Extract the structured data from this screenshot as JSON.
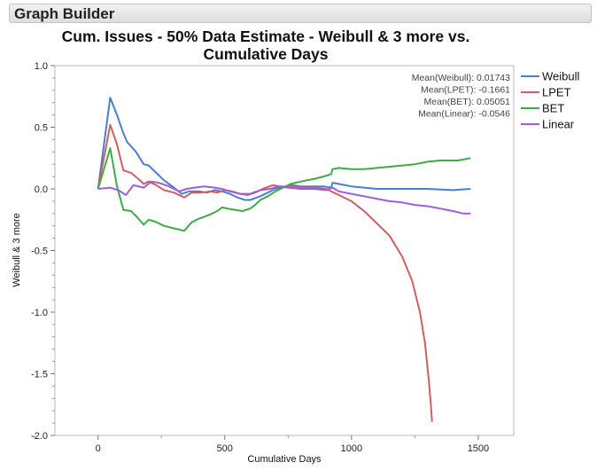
{
  "app": {
    "title": "Graph Builder"
  },
  "chart_data": {
    "type": "line",
    "title_line1": "Cum. Issues - 50% Data Estimate - Weibull & 3 more vs.",
    "title_line2": "Cumulative Days",
    "xlabel": "Cumulative Days",
    "ylabel": "Weibull & 3 more",
    "xlim": [
      -170,
      1640
    ],
    "ylim": [
      -2.0,
      1.0
    ],
    "x_ticks": [
      0,
      500,
      1000,
      1500
    ],
    "y_ticks": [
      1.0,
      0.5,
      0.0,
      -0.5,
      -1.0,
      -1.5,
      -2.0
    ],
    "y_tick_labels": [
      "1.0",
      "0.5",
      "0.0",
      "-0.5",
      "-1.0",
      "-1.5",
      "-2.0"
    ],
    "legend_position": "right",
    "annotations": [
      "Mean(Weibull): 0.01743",
      "Mean(LPET): -0.1661",
      "Mean(BET): 0.05051",
      "Mean(Linear): -0.0546"
    ],
    "series": [
      {
        "name": "Weibull",
        "color": "#4a7fcb",
        "points": [
          [
            0,
            0
          ],
          [
            48,
            0.74
          ],
          [
            75,
            0.6
          ],
          [
            100,
            0.45
          ],
          [
            115,
            0.38
          ],
          [
            150,
            0.3
          ],
          [
            180,
            0.2
          ],
          [
            200,
            0.19
          ],
          [
            225,
            0.14
          ],
          [
            260,
            0.07
          ],
          [
            300,
            0.01
          ],
          [
            330,
            -0.04
          ],
          [
            360,
            -0.02
          ],
          [
            400,
            -0.02
          ],
          [
            430,
            -0.03
          ],
          [
            460,
            -0.01
          ],
          [
            490,
            -0.02
          ],
          [
            520,
            -0.04
          ],
          [
            550,
            -0.07
          ],
          [
            580,
            -0.09
          ],
          [
            600,
            -0.09
          ],
          [
            640,
            -0.06
          ],
          [
            670,
            -0.03
          ],
          [
            700,
            0.0
          ],
          [
            720,
            0.01
          ],
          [
            740,
            0.02
          ],
          [
            770,
            0.03
          ],
          [
            800,
            0.02
          ],
          [
            830,
            0.02
          ],
          [
            860,
            0.02
          ],
          [
            890,
            0.02
          ],
          [
            920,
            0.01
          ],
          [
            925,
            0.05
          ],
          [
            950,
            0.04
          ],
          [
            1000,
            0.02
          ],
          [
            1050,
            0.01
          ],
          [
            1100,
            0.0
          ],
          [
            1200,
            0.0
          ],
          [
            1300,
            0.0
          ],
          [
            1400,
            -0.01
          ],
          [
            1470,
            0.0
          ]
        ]
      },
      {
        "name": "LPET",
        "color": "#d05e63",
        "points": [
          [
            0,
            0
          ],
          [
            48,
            0.52
          ],
          [
            75,
            0.36
          ],
          [
            100,
            0.15
          ],
          [
            130,
            0.13
          ],
          [
            160,
            0.08
          ],
          [
            180,
            0.04
          ],
          [
            200,
            0.06
          ],
          [
            230,
            0.03
          ],
          [
            260,
            -0.01
          ],
          [
            300,
            -0.03
          ],
          [
            340,
            -0.07
          ],
          [
            370,
            -0.03
          ],
          [
            410,
            -0.03
          ],
          [
            440,
            -0.02
          ],
          [
            470,
            -0.03
          ],
          [
            500,
            -0.01
          ],
          [
            530,
            -0.02
          ],
          [
            560,
            -0.04
          ],
          [
            590,
            -0.05
          ],
          [
            620,
            -0.03
          ],
          [
            650,
            0.0
          ],
          [
            690,
            0.03
          ],
          [
            720,
            0.02
          ],
          [
            750,
            0.02
          ],
          [
            800,
            0.01
          ],
          [
            850,
            0.01
          ],
          [
            900,
            0.0
          ],
          [
            950,
            -0.05
          ],
          [
            1000,
            -0.1
          ],
          [
            1050,
            -0.18
          ],
          [
            1100,
            -0.28
          ],
          [
            1150,
            -0.38
          ],
          [
            1200,
            -0.55
          ],
          [
            1240,
            -0.75
          ],
          [
            1270,
            -1.0
          ],
          [
            1290,
            -1.25
          ],
          [
            1305,
            -1.55
          ],
          [
            1313,
            -1.75
          ],
          [
            1318,
            -1.89
          ]
        ]
      },
      {
        "name": "BET",
        "color": "#3cac46",
        "points": [
          [
            0,
            0
          ],
          [
            48,
            0.33
          ],
          [
            75,
            0.02
          ],
          [
            100,
            -0.17
          ],
          [
            130,
            -0.18
          ],
          [
            150,
            -0.22
          ],
          [
            180,
            -0.29
          ],
          [
            200,
            -0.25
          ],
          [
            230,
            -0.27
          ],
          [
            260,
            -0.3
          ],
          [
            300,
            -0.32
          ],
          [
            340,
            -0.34
          ],
          [
            370,
            -0.27
          ],
          [
            400,
            -0.24
          ],
          [
            440,
            -0.21
          ],
          [
            470,
            -0.18
          ],
          [
            490,
            -0.15
          ],
          [
            510,
            -0.16
          ],
          [
            540,
            -0.17
          ],
          [
            570,
            -0.18
          ],
          [
            600,
            -0.16
          ],
          [
            620,
            -0.13
          ],
          [
            640,
            -0.09
          ],
          [
            670,
            -0.06
          ],
          [
            700,
            -0.02
          ],
          [
            730,
            0.01
          ],
          [
            760,
            0.04
          ],
          [
            800,
            0.06
          ],
          [
            850,
            0.08
          ],
          [
            890,
            0.1
          ],
          [
            920,
            0.12
          ],
          [
            925,
            0.16
          ],
          [
            950,
            0.17
          ],
          [
            1000,
            0.16
          ],
          [
            1050,
            0.16
          ],
          [
            1100,
            0.17
          ],
          [
            1150,
            0.18
          ],
          [
            1200,
            0.19
          ],
          [
            1250,
            0.2
          ],
          [
            1300,
            0.22
          ],
          [
            1350,
            0.23
          ],
          [
            1420,
            0.23
          ],
          [
            1470,
            0.25
          ]
        ]
      },
      {
        "name": "Linear",
        "color": "#a05ed4",
        "points": [
          [
            0,
            0
          ],
          [
            48,
            0.01
          ],
          [
            80,
            -0.01
          ],
          [
            110,
            -0.05
          ],
          [
            140,
            0.03
          ],
          [
            180,
            0.01
          ],
          [
            210,
            0.06
          ],
          [
            240,
            0.05
          ],
          [
            280,
            0.02
          ],
          [
            320,
            -0.02
          ],
          [
            350,
            0.0
          ],
          [
            380,
            0.01
          ],
          [
            420,
            0.02
          ],
          [
            460,
            0.01
          ],
          [
            490,
            0.0
          ],
          [
            520,
            -0.02
          ],
          [
            560,
            -0.04
          ],
          [
            600,
            -0.04
          ],
          [
            640,
            -0.01
          ],
          [
            680,
            0.0
          ],
          [
            710,
            0.02
          ],
          [
            750,
            0.01
          ],
          [
            800,
            0.0
          ],
          [
            850,
            0.0
          ],
          [
            900,
            -0.01
          ],
          [
            925,
            0.01
          ],
          [
            950,
            -0.02
          ],
          [
            1000,
            -0.04
          ],
          [
            1050,
            -0.06
          ],
          [
            1100,
            -0.08
          ],
          [
            1150,
            -0.1
          ],
          [
            1200,
            -0.11
          ],
          [
            1250,
            -0.13
          ],
          [
            1300,
            -0.14
          ],
          [
            1350,
            -0.16
          ],
          [
            1400,
            -0.18
          ],
          [
            1440,
            -0.2
          ],
          [
            1470,
            -0.2
          ]
        ]
      }
    ]
  }
}
